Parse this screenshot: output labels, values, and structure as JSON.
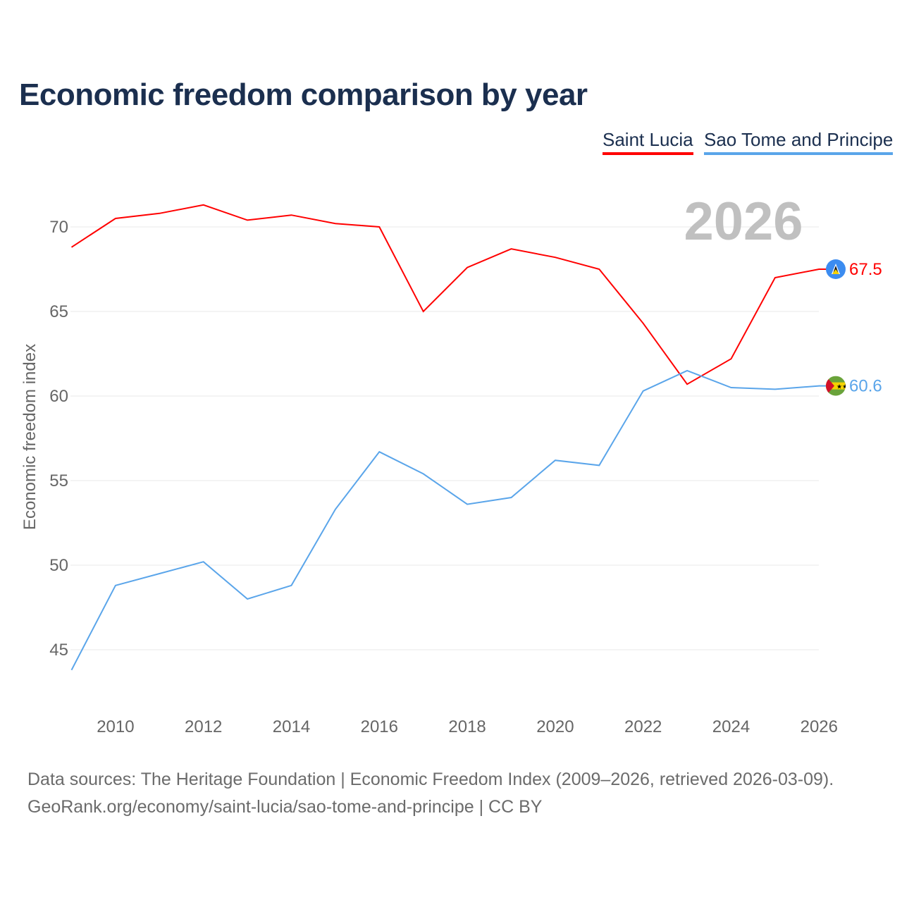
{
  "title": "Economic freedom comparison by year",
  "source_line1": "Data sources: The Heritage Foundation | Economic Freedom Index (2009–2026, retrieved 2026-03-09).",
  "source_line2": "GeoRank.org/economy/saint-lucia/sao-tome-and-principe | CC BY",
  "chart_data": {
    "type": "line",
    "title": "Economic freedom comparison by year",
    "xlabel": "",
    "ylabel": "Economic freedom index",
    "year_label": "2026",
    "x": [
      2009,
      2010,
      2011,
      2012,
      2013,
      2014,
      2015,
      2016,
      2017,
      2018,
      2019,
      2020,
      2021,
      2022,
      2023,
      2024,
      2025,
      2026
    ],
    "xticks": [
      2010,
      2012,
      2014,
      2016,
      2018,
      2020,
      2022,
      2024,
      2026
    ],
    "yticks": [
      45,
      50,
      55,
      60,
      65,
      70
    ],
    "xlim": [
      2009,
      2026
    ],
    "ylim": [
      42.5,
      72
    ],
    "grid": true,
    "legend_position": "top-right",
    "series": [
      {
        "name": "Saint Lucia",
        "color": "#ff0000",
        "end_label": "67.5",
        "values": [
          68.8,
          70.5,
          70.8,
          71.3,
          70.4,
          70.7,
          70.2,
          70.0,
          65.0,
          67.6,
          68.7,
          68.2,
          67.5,
          64.3,
          60.7,
          62.2,
          67.0,
          67.5
        ]
      },
      {
        "name": "Sao Tome and Principe",
        "color": "#5aa5ea",
        "end_label": "60.6",
        "values": [
          43.8,
          48.8,
          49.5,
          50.2,
          48.0,
          48.8,
          53.3,
          56.7,
          55.4,
          53.6,
          54.0,
          56.2,
          55.9,
          60.3,
          61.5,
          60.5,
          60.4,
          60.6
        ]
      }
    ]
  }
}
